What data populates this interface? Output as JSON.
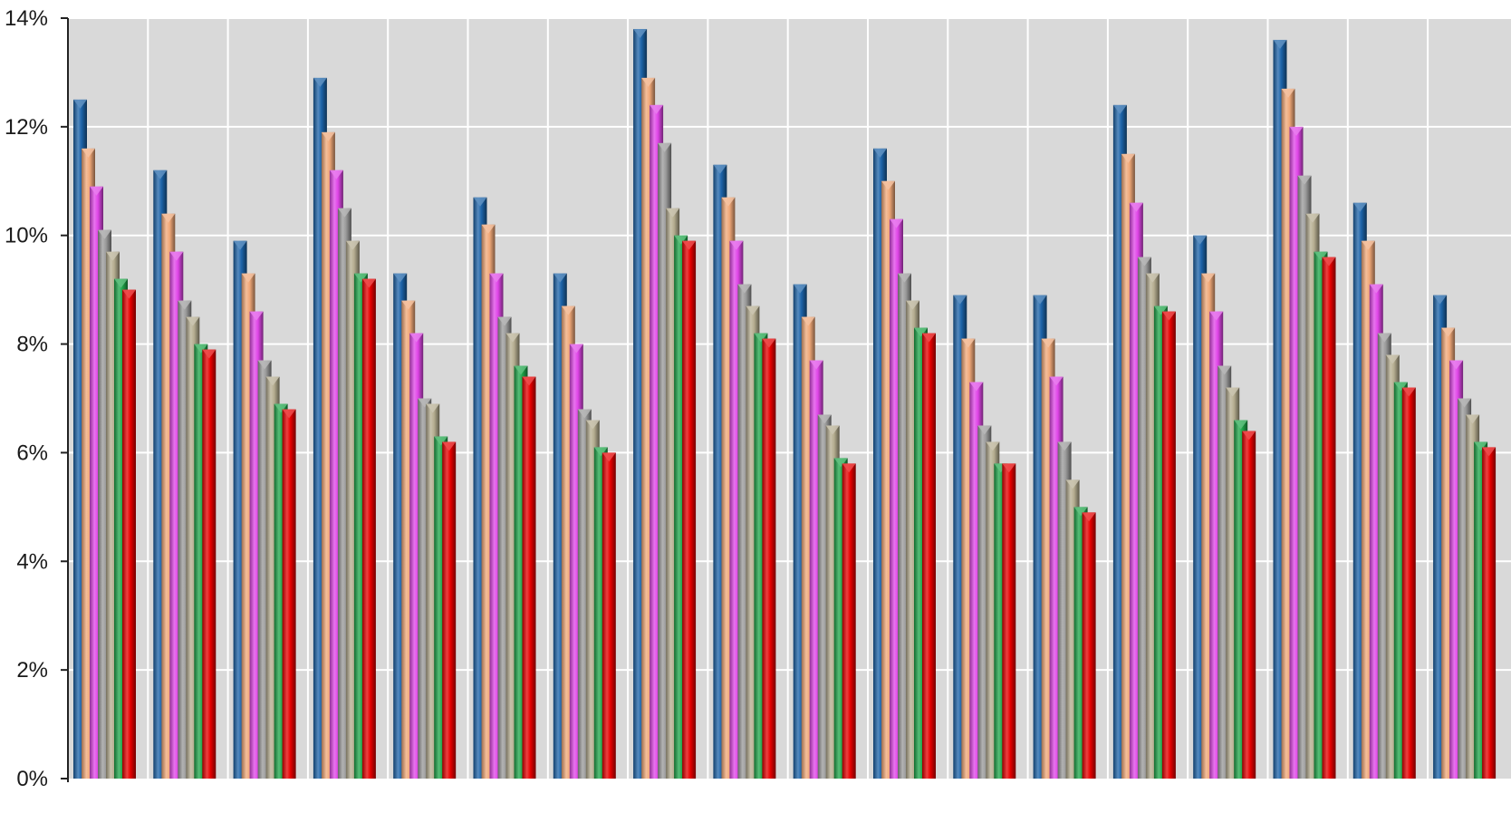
{
  "chart_data": {
    "type": "bar",
    "title": "",
    "xlabel": "",
    "ylabel": "",
    "ylim": [
      0,
      14
    ],
    "y_tick_labels": [
      "0%",
      "2%",
      "4%",
      "6%",
      "8%",
      "10%",
      "12%",
      "14%"
    ],
    "y_ticks": [
      0,
      2,
      4,
      6,
      8,
      10,
      12,
      14
    ],
    "grid": true,
    "legend": "none",
    "categories": [
      "",
      "",
      "",
      "",
      "",
      "",
      "",
      "",
      "",
      "",
      "",
      "",
      "",
      "",
      "",
      "",
      "",
      ""
    ],
    "series": [
      {
        "color": "#1c63a8",
        "values": [
          12.5,
          11.2,
          9.9,
          12.9,
          9.3,
          10.7,
          9.3,
          13.8,
          11.3,
          9.1,
          11.6,
          8.9,
          8.9,
          12.4,
          10.0,
          13.6,
          10.6,
          8.9
        ]
      },
      {
        "color": "#f0a878",
        "values": [
          11.6,
          10.4,
          9.3,
          11.9,
          8.8,
          10.2,
          8.7,
          12.9,
          10.7,
          8.5,
          11.0,
          8.1,
          8.1,
          11.5,
          9.3,
          12.7,
          9.9,
          8.3
        ]
      },
      {
        "color": "#e046e8",
        "values": [
          10.9,
          9.7,
          8.6,
          11.2,
          8.2,
          9.3,
          8.0,
          12.4,
          9.9,
          7.7,
          10.3,
          7.3,
          7.4,
          10.6,
          8.6,
          12.0,
          9.1,
          7.7
        ]
      },
      {
        "color": "#9a9a9a",
        "values": [
          10.1,
          8.8,
          7.7,
          10.5,
          7.0,
          8.5,
          6.8,
          11.7,
          9.1,
          6.7,
          9.3,
          6.5,
          6.2,
          9.6,
          7.6,
          11.1,
          8.2,
          7.0
        ]
      },
      {
        "color": "#b5ad90",
        "values": [
          9.7,
          8.5,
          7.4,
          9.9,
          6.9,
          8.2,
          6.6,
          10.5,
          8.7,
          6.5,
          8.8,
          6.2,
          5.5,
          9.3,
          7.2,
          10.4,
          7.8,
          6.7
        ]
      },
      {
        "color": "#1fa64a",
        "values": [
          9.2,
          8.0,
          6.9,
          9.3,
          6.3,
          7.6,
          6.1,
          10.0,
          8.2,
          5.9,
          8.3,
          5.8,
          5.0,
          8.7,
          6.6,
          9.7,
          7.3,
          6.2
        ]
      },
      {
        "color": "#e60000",
        "values": [
          9.0,
          7.9,
          6.8,
          9.2,
          6.2,
          7.4,
          6.0,
          9.9,
          8.1,
          5.8,
          8.2,
          5.8,
          4.9,
          8.6,
          6.4,
          9.6,
          7.2,
          6.1
        ]
      }
    ]
  }
}
